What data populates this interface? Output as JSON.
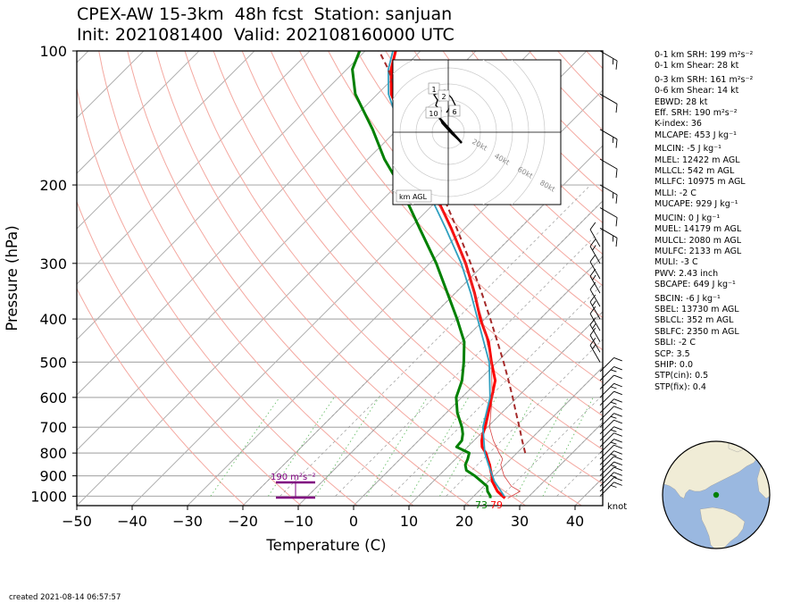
{
  "header": {
    "line1": "CPEX-AW 15-3km  48h fcst  Station: sanjuan",
    "line2": "Init: 2021081400  Valid: 202108160000 UTC"
  },
  "chart_data": {
    "type": "line",
    "subtype": "skew-t log-p",
    "xlabel": "Temperature (C)",
    "ylabel": "Pressure (hPa)",
    "xlim": [
      -50,
      45
    ],
    "ylim": [
      1050,
      100
    ],
    "y_scale": "log",
    "skew": "45 degrees",
    "x_ticks": [
      -50,
      -40,
      -30,
      -20,
      -10,
      0,
      10,
      20,
      30,
      40
    ],
    "x_tick_labels": [
      "−50",
      "−40",
      "−30",
      "−20",
      "−10",
      "0",
      "10",
      "20",
      "30",
      "40"
    ],
    "y_ticks": [
      100,
      200,
      300,
      400,
      500,
      600,
      700,
      800,
      900,
      1000
    ],
    "grid": true,
    "series": [
      {
        "name": "",
        "color": "#ff0000",
        "values": [
          [
            1010,
            26
          ],
          [
            1000,
            25.2
          ],
          [
            975,
            23.4
          ],
          [
            950,
            22
          ],
          [
            925,
            20.6
          ],
          [
            900,
            19.6
          ],
          [
            875,
            18.4
          ],
          [
            850,
            17.2
          ],
          [
            825,
            15.8
          ],
          [
            800,
            14.4
          ],
          [
            775,
            12.6
          ],
          [
            750,
            11.4
          ],
          [
            725,
            10.4
          ],
          [
            700,
            9.6
          ],
          [
            650,
            7.6
          ],
          [
            600,
            5.4
          ],
          [
            550,
            3
          ],
          [
            500,
            -1
          ],
          [
            450,
            -5.2
          ],
          [
            400,
            -10.8
          ],
          [
            350,
            -16.5
          ],
          [
            300,
            -23.5
          ],
          [
            250,
            -32.5
          ],
          [
            200,
            -44
          ],
          [
            175,
            -51
          ],
          [
            150,
            -58.5
          ],
          [
            125,
            -67.5
          ],
          [
            110,
            -72
          ],
          [
            100,
            -74.5
          ]
        ]
      },
      {
        "name": "",
        "color": "#008000",
        "values": [
          [
            1010,
            23.3
          ],
          [
            1000,
            23
          ],
          [
            975,
            21.6
          ],
          [
            950,
            20.6
          ],
          [
            925,
            18.6
          ],
          [
            900,
            16.5
          ],
          [
            875,
            14
          ],
          [
            850,
            12.8
          ],
          [
            825,
            12.2
          ],
          [
            800,
            11.4
          ],
          [
            775,
            8
          ],
          [
            750,
            7.8
          ],
          [
            725,
            6.8
          ],
          [
            700,
            5.4
          ],
          [
            650,
            2
          ],
          [
            600,
            -1
          ],
          [
            550,
            -3
          ],
          [
            500,
            -6
          ],
          [
            450,
            -9.6
          ],
          [
            400,
            -15
          ],
          [
            350,
            -21.4
          ],
          [
            300,
            -28.8
          ],
          [
            250,
            -38.2
          ],
          [
            200,
            -49.6
          ],
          [
            175,
            -57
          ],
          [
            150,
            -64.5
          ],
          [
            125,
            -74
          ],
          [
            110,
            -79
          ],
          [
            100,
            -81
          ]
        ]
      },
      {
        "name": "",
        "color": "#d84040",
        "values": [
          [
            1010,
            26.5
          ],
          [
            975,
            27.5
          ],
          [
            950,
            25
          ],
          [
            900,
            21.8
          ],
          [
            850,
            19.2
          ],
          [
            825,
            18.5
          ],
          [
            800,
            16.8
          ],
          [
            750,
            13.5
          ],
          [
            700,
            10.4
          ],
          [
            600,
            5.5
          ],
          [
            500,
            -1
          ],
          [
            400,
            -10.5
          ],
          [
            300,
            -23.5
          ],
          [
            200,
            -44
          ]
        ]
      },
      {
        "name": "",
        "color": "#30a0c0",
        "values": [
          [
            1000,
            25.5
          ],
          [
            925,
            21
          ],
          [
            850,
            17
          ],
          [
            800,
            14.2
          ],
          [
            700,
            9.2
          ],
          [
            600,
            5.1
          ],
          [
            500,
            -1.4
          ],
          [
            400,
            -11.3
          ],
          [
            350,
            -17.2
          ],
          [
            300,
            -24.3
          ],
          [
            250,
            -33.5
          ],
          [
            200,
            -45
          ],
          [
            175,
            -52
          ],
          [
            150,
            -59.5
          ],
          [
            125,
            -68
          ],
          [
            110,
            -72.5
          ],
          [
            100,
            -75
          ]
        ]
      },
      {
        "name": "",
        "color": "#a52a2a",
        "values": [
          [
            800,
            21.5
          ],
          [
            750,
            18.7
          ],
          [
            700,
            15.8
          ],
          [
            650,
            12.6
          ],
          [
            600,
            9.2
          ],
          [
            550,
            5.4
          ],
          [
            500,
            1.2
          ],
          [
            450,
            -3.6
          ],
          [
            400,
            -9
          ],
          [
            350,
            -15.2
          ],
          [
            300,
            -22.6
          ],
          [
            250,
            -31.5
          ],
          [
            200,
            -42.6
          ],
          [
            175,
            -49.4
          ],
          [
            150,
            -57.2
          ],
          [
            125,
            -66.5
          ],
          [
            110,
            -72.5
          ],
          [
            100,
            -77.5
          ]
        ]
      }
    ],
    "annotations": {
      "surface_temp": "79",
      "surface_dewpoint": "73",
      "srh_label": "190 m²s⁻²",
      "wind_unit_label": "knot"
    },
    "hodograph": {
      "unit_label": "km AGL",
      "ring_labels": [
        "20kt",
        "40kt",
        "60kt",
        "80kt"
      ],
      "height_labels": [
        "1",
        "2",
        "6",
        "10"
      ]
    }
  },
  "stats": [
    {
      "label": "0-1 km SRH: 199 m²s⁻²"
    },
    {
      "label": "0-1 km Shear: 28 kt"
    },
    {
      "label": "0-3 km SRH: 161 m²s⁻²",
      "gap": true
    },
    {
      "label": "0-6 km Shear: 14 kt"
    },
    {
      "label": "EBWD: 28 kt"
    },
    {
      "label": "Eff. SRH: 190 m²s⁻²"
    },
    {
      "label": "K-index: 36"
    },
    {
      "label": "MLCAPE: 453 J kg⁻¹"
    },
    {
      "label": "MLCIN: -5 J kg⁻¹",
      "gap": true
    },
    {
      "label": "MLEL: 12422 m AGL"
    },
    {
      "label": "MLLCL: 542 m AGL"
    },
    {
      "label": "MLLFC: 10975 m AGL"
    },
    {
      "label": "MLLI: -2 C"
    },
    {
      "label": "MUCAPE: 929 J kg⁻¹"
    },
    {
      "label": "MUCIN: 0 J kg⁻¹",
      "gap": true
    },
    {
      "label": "MUEL: 14179 m AGL"
    },
    {
      "label": "MULCL: 2080 m AGL"
    },
    {
      "label": "MULFC: 2133 m AGL"
    },
    {
      "label": "MULI: -3 C"
    },
    {
      "label": "PWV: 2.43 inch"
    },
    {
      "label": "SBCAPE: 649 J kg⁻¹"
    },
    {
      "label": "SBCIN: -6 J kg⁻¹",
      "gap": true
    },
    {
      "label": "SBEL: 13730 m AGL"
    },
    {
      "label": "SBLCL: 352 m AGL"
    },
    {
      "label": "SBLFC: 2350 m AGL"
    },
    {
      "label": "SBLI: -2 C"
    },
    {
      "label": "SCP: 3.5"
    },
    {
      "label": "SHIP: 0.0"
    },
    {
      "label": "STP(cin): 0.5"
    },
    {
      "label": "STP(fix): 0.4"
    }
  ],
  "footer": {
    "created": "created 2021-08-14 06:57:57"
  },
  "colors": {
    "temperature": "#ff0000",
    "dewpoint": "#008000",
    "parcel": "#a52a2a",
    "virtual_temp": "#30a0c0",
    "srh_bar": "#800080",
    "globe_ocean": "#9ab8e0",
    "globe_land": "#f0ecd6"
  }
}
